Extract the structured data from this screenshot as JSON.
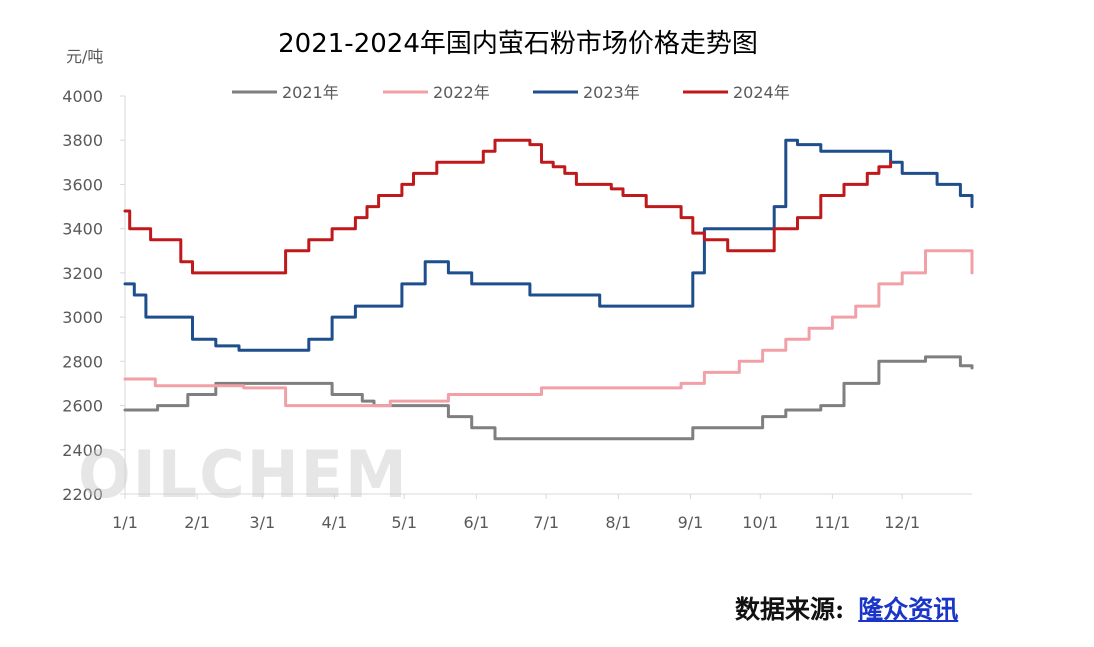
{
  "chart_data": {
    "type": "line",
    "title": "2021-2024年国内萤石粉市场价格走势图",
    "ylabel": "元/吨",
    "ylim": [
      2200,
      4000
    ],
    "yticks": [
      2200,
      2400,
      2600,
      2800,
      3000,
      3200,
      3400,
      3600,
      3800,
      4000
    ],
    "xlim": [
      1,
      365
    ],
    "xticks": [
      {
        "label": "1/1",
        "day": 1
      },
      {
        "label": "2/1",
        "day": 32
      },
      {
        "label": "3/1",
        "day": 60
      },
      {
        "label": "4/1",
        "day": 91
      },
      {
        "label": "5/1",
        "day": 121
      },
      {
        "label": "6/1",
        "day": 152
      },
      {
        "label": "7/1",
        "day": 182
      },
      {
        "label": "8/1",
        "day": 213
      },
      {
        "label": "9/1",
        "day": 244
      },
      {
        "label": "10/1",
        "day": 274
      },
      {
        "label": "11/1",
        "day": 305
      },
      {
        "label": "12/1",
        "day": 335
      }
    ],
    "grid": false,
    "legend_position": "top",
    "series": [
      {
        "name": "2021年",
        "color": "#7f7f7f",
        "day": [
          1,
          10,
          15,
          28,
          31,
          40,
          55,
          70,
          85,
          90,
          100,
          103,
          108,
          120,
          130,
          140,
          150,
          160,
          175,
          200,
          230,
          245,
          260,
          275,
          285,
          300,
          310,
          325,
          335,
          345,
          360,
          365
        ],
        "values": [
          2580,
          2580,
          2600,
          2650,
          2650,
          2700,
          2700,
          2700,
          2700,
          2650,
          2650,
          2620,
          2600,
          2600,
          2600,
          2550,
          2500,
          2450,
          2450,
          2450,
          2450,
          2500,
          2500,
          2550,
          2580,
          2600,
          2700,
          2800,
          2800,
          2820,
          2780,
          2770
        ]
      },
      {
        "name": "2022年",
        "color": "#f2a0a8",
        "day": [
          1,
          10,
          14,
          30,
          40,
          52,
          60,
          70,
          85,
          95,
          105,
          115,
          125,
          140,
          150,
          165,
          180,
          200,
          220,
          232,
          240,
          250,
          265,
          275,
          285,
          295,
          305,
          315,
          325,
          335,
          345,
          355,
          362,
          365
        ],
        "values": [
          2720,
          2720,
          2690,
          2690,
          2690,
          2680,
          2680,
          2600,
          2600,
          2600,
          2600,
          2620,
          2620,
          2650,
          2650,
          2650,
          2680,
          2680,
          2680,
          2680,
          2700,
          2750,
          2800,
          2850,
          2900,
          2950,
          3000,
          3050,
          3150,
          3200,
          3300,
          3300,
          3300,
          3200
        ]
      },
      {
        "name": "2023年",
        "color": "#1f4e8c",
        "day": [
          1,
          5,
          10,
          30,
          40,
          50,
          60,
          65,
          80,
          90,
          100,
          120,
          130,
          140,
          150,
          160,
          175,
          195,
          205,
          210,
          220,
          230,
          240,
          245,
          250,
          270,
          280,
          285,
          290,
          300,
          320,
          330,
          335,
          350,
          360,
          365
        ],
        "values": [
          3150,
          3100,
          3000,
          2900,
          2870,
          2850,
          2850,
          2850,
          2900,
          3000,
          3050,
          3150,
          3250,
          3200,
          3150,
          3150,
          3100,
          3100,
          3050,
          3050,
          3050,
          3050,
          3050,
          3200,
          3400,
          3400,
          3500,
          3800,
          3780,
          3750,
          3750,
          3700,
          3650,
          3600,
          3550,
          3500
        ]
      },
      {
        "name": "2024年",
        "color": "#c0191c",
        "day": [
          1,
          3,
          12,
          25,
          30,
          40,
          55,
          60,
          70,
          80,
          90,
          100,
          105,
          110,
          120,
          125,
          135,
          140,
          150,
          155,
          160,
          165,
          170,
          175,
          180,
          185,
          190,
          195,
          210,
          215,
          225,
          235,
          240,
          245,
          250,
          260,
          265,
          275,
          280,
          290,
          300,
          310,
          320,
          325,
          330
        ],
        "values": [
          3480,
          3400,
          3350,
          3250,
          3200,
          3200,
          3200,
          3200,
          3300,
          3350,
          3400,
          3450,
          3500,
          3550,
          3600,
          3650,
          3700,
          3700,
          3700,
          3750,
          3800,
          3800,
          3800,
          3780,
          3700,
          3680,
          3650,
          3600,
          3580,
          3550,
          3500,
          3500,
          3450,
          3380,
          3350,
          3300,
          3300,
          3300,
          3400,
          3450,
          3550,
          3600,
          3650,
          3680,
          3700
        ]
      }
    ]
  },
  "source": {
    "label": "数据来源:",
    "link_text": "隆众资讯"
  },
  "watermark": "OILCHEM"
}
